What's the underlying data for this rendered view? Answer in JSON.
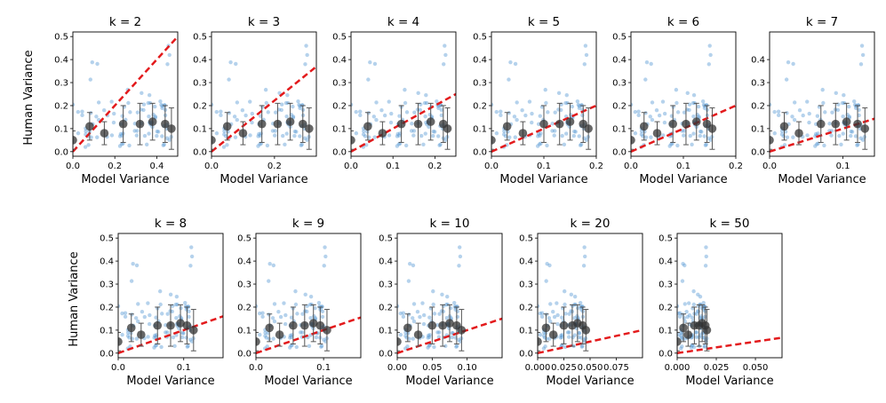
{
  "chart_data": [
    {
      "type": "scatter",
      "title": "k = 2",
      "xlabel": "Model Variance",
      "ylabel": "Human Variance",
      "xlim": [
        0,
        0.5
      ],
      "ylim": [
        -0.02,
        0.52
      ],
      "x_ticks": [
        0,
        0.2,
        0.4
      ],
      "x_tick_labels": [
        "0.0",
        "0.2",
        "0.4"
      ],
      "y_ticks": [
        0,
        0.1,
        0.2,
        0.3,
        0.4,
        0.5
      ],
      "y_tick_labels": [
        "0.0",
        "0.1",
        "0.2",
        "0.3",
        "0.4",
        "0.5"
      ],
      "fit_slope": 1.0,
      "fit_intercept": 0.0,
      "binned_means": [
        {
          "x": 0.0,
          "y": 0.05,
          "err": 0.04
        },
        {
          "x": 0.08,
          "y": 0.11,
          "err": 0.06
        },
        {
          "x": 0.15,
          "y": 0.08,
          "err": 0.05
        },
        {
          "x": 0.24,
          "y": 0.12,
          "err": 0.08
        },
        {
          "x": 0.32,
          "y": 0.12,
          "err": 0.09
        },
        {
          "x": 0.38,
          "y": 0.13,
          "err": 0.08
        },
        {
          "x": 0.44,
          "y": 0.12,
          "err": 0.08
        },
        {
          "x": 0.47,
          "y": 0.1,
          "err": 0.09
        }
      ]
    },
    {
      "type": "scatter",
      "title": "k = 3",
      "xlabel": "Model Variance",
      "ylabel": "",
      "xlim": [
        0,
        0.333
      ],
      "ylim": [
        -0.02,
        0.52
      ],
      "x_ticks": [
        0,
        0.2
      ],
      "x_tick_labels": [
        "0.0",
        "0.2"
      ],
      "y_ticks": [
        0,
        0.1,
        0.2,
        0.3,
        0.4,
        0.5
      ],
      "y_tick_labels": [
        "0.0",
        "0.1",
        "0.2",
        "0.3",
        "0.4",
        "0.5"
      ],
      "fit_slope": 1.11,
      "fit_intercept": 0.0,
      "binned_means": [
        {
          "x": 0.0,
          "y": 0.05,
          "err": 0.04
        },
        {
          "x": 0.05,
          "y": 0.11,
          "err": 0.06
        },
        {
          "x": 0.1,
          "y": 0.08,
          "err": 0.05
        },
        {
          "x": 0.16,
          "y": 0.12,
          "err": 0.08
        },
        {
          "x": 0.21,
          "y": 0.12,
          "err": 0.09
        },
        {
          "x": 0.25,
          "y": 0.13,
          "err": 0.08
        },
        {
          "x": 0.29,
          "y": 0.12,
          "err": 0.08
        },
        {
          "x": 0.31,
          "y": 0.1,
          "err": 0.09
        }
      ]
    },
    {
      "type": "scatter",
      "title": "k = 4",
      "xlabel": "",
      "ylabel": "",
      "xlim": [
        0,
        0.25
      ],
      "ylim": [
        -0.02,
        0.52
      ],
      "x_ticks": [
        0,
        0.1,
        0.2
      ],
      "x_tick_labels": [
        "0.0",
        "0.1",
        "0.2"
      ],
      "y_ticks": [
        0,
        0.1,
        0.2,
        0.3,
        0.4,
        0.5
      ],
      "y_tick_labels": [
        "0.0",
        "0.1",
        "0.2",
        "0.3",
        "0.4",
        "0.5"
      ],
      "fit_slope": 1.0,
      "fit_intercept": 0.0,
      "binned_means": [
        {
          "x": 0.0,
          "y": 0.05,
          "err": 0.04
        },
        {
          "x": 0.04,
          "y": 0.11,
          "err": 0.06
        },
        {
          "x": 0.075,
          "y": 0.08,
          "err": 0.05
        },
        {
          "x": 0.12,
          "y": 0.12,
          "err": 0.08
        },
        {
          "x": 0.16,
          "y": 0.12,
          "err": 0.09
        },
        {
          "x": 0.19,
          "y": 0.13,
          "err": 0.08
        },
        {
          "x": 0.22,
          "y": 0.12,
          "err": 0.08
        },
        {
          "x": 0.23,
          "y": 0.1,
          "err": 0.09
        }
      ]
    },
    {
      "type": "scatter",
      "title": "k = 5",
      "xlabel": "Model Variance",
      "ylabel": "",
      "xlim": [
        0,
        0.2
      ],
      "ylim": [
        -0.02,
        0.52
      ],
      "x_ticks": [
        0,
        0.1,
        0.2
      ],
      "x_tick_labels": [
        "0.0",
        "0.1",
        "0.2"
      ],
      "y_ticks": [
        0,
        0.1,
        0.2,
        0.3,
        0.4,
        0.5
      ],
      "y_tick_labels": [
        "0.0",
        "0.1",
        "0.2",
        "0.3",
        "0.4",
        "0.5"
      ],
      "fit_slope": 1.0,
      "fit_intercept": 0.0,
      "binned_means": [
        {
          "x": 0.0,
          "y": 0.05,
          "err": 0.04
        },
        {
          "x": 0.03,
          "y": 0.11,
          "err": 0.06
        },
        {
          "x": 0.06,
          "y": 0.08,
          "err": 0.05
        },
        {
          "x": 0.1,
          "y": 0.12,
          "err": 0.08
        },
        {
          "x": 0.13,
          "y": 0.12,
          "err": 0.09
        },
        {
          "x": 0.15,
          "y": 0.13,
          "err": 0.08
        },
        {
          "x": 0.175,
          "y": 0.12,
          "err": 0.08
        },
        {
          "x": 0.185,
          "y": 0.1,
          "err": 0.09
        }
      ]
    },
    {
      "type": "scatter",
      "title": "k = 6",
      "xlabel": "Model Variance",
      "ylabel": "",
      "xlim": [
        0,
        0.2
      ],
      "ylim": [
        -0.02,
        0.52
      ],
      "x_ticks": [
        0,
        0.1,
        0.2
      ],
      "x_tick_labels": [
        "0.0",
        "0.1",
        "0.2"
      ],
      "y_ticks": [
        0,
        0.1,
        0.2,
        0.3,
        0.4,
        0.5
      ],
      "y_tick_labels": [
        "0.0",
        "0.1",
        "0.2",
        "0.3",
        "0.4",
        "0.5"
      ],
      "fit_slope": 1.0,
      "fit_intercept": 0.0,
      "binned_means": [
        {
          "x": 0.0,
          "y": 0.05,
          "err": 0.04
        },
        {
          "x": 0.025,
          "y": 0.11,
          "err": 0.06
        },
        {
          "x": 0.05,
          "y": 0.08,
          "err": 0.05
        },
        {
          "x": 0.08,
          "y": 0.12,
          "err": 0.08
        },
        {
          "x": 0.105,
          "y": 0.12,
          "err": 0.09
        },
        {
          "x": 0.125,
          "y": 0.13,
          "err": 0.08
        },
        {
          "x": 0.145,
          "y": 0.12,
          "err": 0.08
        },
        {
          "x": 0.155,
          "y": 0.1,
          "err": 0.09
        }
      ]
    },
    {
      "type": "scatter",
      "title": "k = 7",
      "xlabel": "Model Variance",
      "ylabel": "",
      "xlim": [
        0,
        0.143
      ],
      "ylim": [
        -0.02,
        0.52
      ],
      "x_ticks": [
        0,
        0.1
      ],
      "x_tick_labels": [
        "0.0",
        "0.1"
      ],
      "y_ticks": [
        0,
        0.1,
        0.2,
        0.3,
        0.4
      ],
      "y_tick_labels": [
        "0.0",
        "0.1",
        "0.2",
        "0.3",
        "0.4"
      ],
      "fit_slope": 1.0,
      "fit_intercept": 0.0,
      "binned_means": [
        {
          "x": 0.0,
          "y": 0.05,
          "err": 0.04
        },
        {
          "x": 0.02,
          "y": 0.11,
          "err": 0.06
        },
        {
          "x": 0.04,
          "y": 0.08,
          "err": 0.05
        },
        {
          "x": 0.07,
          "y": 0.12,
          "err": 0.08
        },
        {
          "x": 0.09,
          "y": 0.12,
          "err": 0.09
        },
        {
          "x": 0.105,
          "y": 0.13,
          "err": 0.08
        },
        {
          "x": 0.12,
          "y": 0.12,
          "err": 0.08
        },
        {
          "x": 0.13,
          "y": 0.1,
          "err": 0.09
        }
      ]
    },
    {
      "type": "scatter",
      "title": "k = 8",
      "xlabel": "Model Variance",
      "ylabel": "Human Variance",
      "xlim": [
        0,
        0.16
      ],
      "ylim": [
        -0.02,
        0.52
      ],
      "x_ticks": [
        0,
        0.1
      ],
      "x_tick_labels": [
        "0.0",
        "0.1"
      ],
      "y_ticks": [
        0,
        0.1,
        0.2,
        0.3,
        0.4,
        0.5
      ],
      "y_tick_labels": [
        "0.0",
        "0.1",
        "0.2",
        "0.3",
        "0.4",
        "0.5"
      ],
      "fit_slope": 1.0,
      "fit_intercept": 0.0,
      "binned_means": [
        {
          "x": 0.0,
          "y": 0.05,
          "err": 0.04
        },
        {
          "x": 0.02,
          "y": 0.11,
          "err": 0.06
        },
        {
          "x": 0.035,
          "y": 0.08,
          "err": 0.05
        },
        {
          "x": 0.06,
          "y": 0.12,
          "err": 0.08
        },
        {
          "x": 0.08,
          "y": 0.12,
          "err": 0.09
        },
        {
          "x": 0.095,
          "y": 0.13,
          "err": 0.08
        },
        {
          "x": 0.105,
          "y": 0.12,
          "err": 0.08
        },
        {
          "x": 0.115,
          "y": 0.1,
          "err": 0.09
        }
      ]
    },
    {
      "type": "scatter",
      "title": "k = 9",
      "xlabel": "Model Variance",
      "ylabel": "",
      "xlim": [
        0,
        0.155
      ],
      "ylim": [
        -0.02,
        0.52
      ],
      "x_ticks": [
        0,
        0.1
      ],
      "x_tick_labels": [
        "0.0",
        "0.1"
      ],
      "y_ticks": [
        0,
        0.1,
        0.2,
        0.3,
        0.4,
        0.5
      ],
      "y_tick_labels": [
        "0.0",
        "0.1",
        "0.2",
        "0.3",
        "0.4",
        "0.5"
      ],
      "fit_slope": 1.0,
      "fit_intercept": 0.0,
      "binned_means": [
        {
          "x": 0.0,
          "y": 0.05,
          "err": 0.04
        },
        {
          "x": 0.02,
          "y": 0.11,
          "err": 0.06
        },
        {
          "x": 0.035,
          "y": 0.08,
          "err": 0.05
        },
        {
          "x": 0.055,
          "y": 0.12,
          "err": 0.08
        },
        {
          "x": 0.072,
          "y": 0.12,
          "err": 0.09
        },
        {
          "x": 0.085,
          "y": 0.13,
          "err": 0.08
        },
        {
          "x": 0.095,
          "y": 0.12,
          "err": 0.08
        },
        {
          "x": 0.105,
          "y": 0.1,
          "err": 0.09
        }
      ]
    },
    {
      "type": "scatter",
      "title": "k = 10",
      "xlabel": "Model Variance",
      "ylabel": "",
      "xlim": [
        0,
        0.15
      ],
      "ylim": [
        -0.02,
        0.52
      ],
      "x_ticks": [
        0,
        0.05,
        0.1
      ],
      "x_tick_labels": [
        "0.00",
        "0.05",
        "0.10"
      ],
      "y_ticks": [
        0,
        0.1,
        0.2,
        0.3,
        0.4,
        0.5
      ],
      "y_tick_labels": [
        "0.0",
        "0.1",
        "0.2",
        "0.3",
        "0.4",
        "0.5"
      ],
      "fit_slope": 1.0,
      "fit_intercept": 0.0,
      "binned_means": [
        {
          "x": 0.0,
          "y": 0.05,
          "err": 0.04
        },
        {
          "x": 0.015,
          "y": 0.11,
          "err": 0.06
        },
        {
          "x": 0.03,
          "y": 0.08,
          "err": 0.05
        },
        {
          "x": 0.05,
          "y": 0.12,
          "err": 0.08
        },
        {
          "x": 0.065,
          "y": 0.12,
          "err": 0.09
        },
        {
          "x": 0.075,
          "y": 0.13,
          "err": 0.08
        },
        {
          "x": 0.085,
          "y": 0.12,
          "err": 0.08
        },
        {
          "x": 0.092,
          "y": 0.1,
          "err": 0.09
        }
      ]
    },
    {
      "type": "scatter",
      "title": "k = 20",
      "xlabel": "Model Variance",
      "ylabel": "",
      "xlim": [
        0,
        0.1
      ],
      "ylim": [
        -0.02,
        0.52
      ],
      "x_ticks": [
        0,
        0.025,
        0.05,
        0.075
      ],
      "x_tick_labels": [
        "0.000",
        "0.025",
        "0.050",
        "0.075"
      ],
      "y_ticks": [
        0,
        0.1,
        0.2,
        0.3,
        0.4,
        0.5
      ],
      "y_tick_labels": [
        "0.0",
        "0.1",
        "0.2",
        "0.3",
        "0.4",
        "0.5"
      ],
      "fit_slope": 1.0,
      "fit_intercept": 0.0,
      "binned_means": [
        {
          "x": 0.0,
          "y": 0.05,
          "err": 0.04
        },
        {
          "x": 0.008,
          "y": 0.11,
          "err": 0.06
        },
        {
          "x": 0.015,
          "y": 0.08,
          "err": 0.05
        },
        {
          "x": 0.025,
          "y": 0.12,
          "err": 0.08
        },
        {
          "x": 0.033,
          "y": 0.12,
          "err": 0.09
        },
        {
          "x": 0.038,
          "y": 0.13,
          "err": 0.08
        },
        {
          "x": 0.043,
          "y": 0.12,
          "err": 0.08
        },
        {
          "x": 0.046,
          "y": 0.1,
          "err": 0.09
        }
      ]
    },
    {
      "type": "scatter",
      "title": "k = 50",
      "xlabel": "Model Variance",
      "ylabel": "",
      "xlim": [
        0,
        0.067
      ],
      "ylim": [
        -0.02,
        0.52
      ],
      "x_ticks": [
        0,
        0.025,
        0.05
      ],
      "x_tick_labels": [
        "0.000",
        "0.025",
        "0.050"
      ],
      "y_ticks": [
        0,
        0.1,
        0.2,
        0.3,
        0.4,
        0.5
      ],
      "y_tick_labels": [
        "0.0",
        "0.1",
        "0.2",
        "0.3",
        "0.4",
        "0.5"
      ],
      "fit_slope": 1.0,
      "fit_intercept": 0.0,
      "binned_means": [
        {
          "x": 0.0,
          "y": 0.05,
          "err": 0.04
        },
        {
          "x": 0.004,
          "y": 0.11,
          "err": 0.06
        },
        {
          "x": 0.007,
          "y": 0.08,
          "err": 0.05
        },
        {
          "x": 0.011,
          "y": 0.12,
          "err": 0.08
        },
        {
          "x": 0.014,
          "y": 0.12,
          "err": 0.09
        },
        {
          "x": 0.016,
          "y": 0.13,
          "err": 0.08
        },
        {
          "x": 0.018,
          "y": 0.12,
          "err": 0.08
        },
        {
          "x": 0.019,
          "y": 0.1,
          "err": 0.09
        }
      ]
    }
  ],
  "colors": {
    "scatter": "#5b9bd5",
    "fit": "#e31a1c",
    "binned": "#333333",
    "errbar": "#555555"
  }
}
